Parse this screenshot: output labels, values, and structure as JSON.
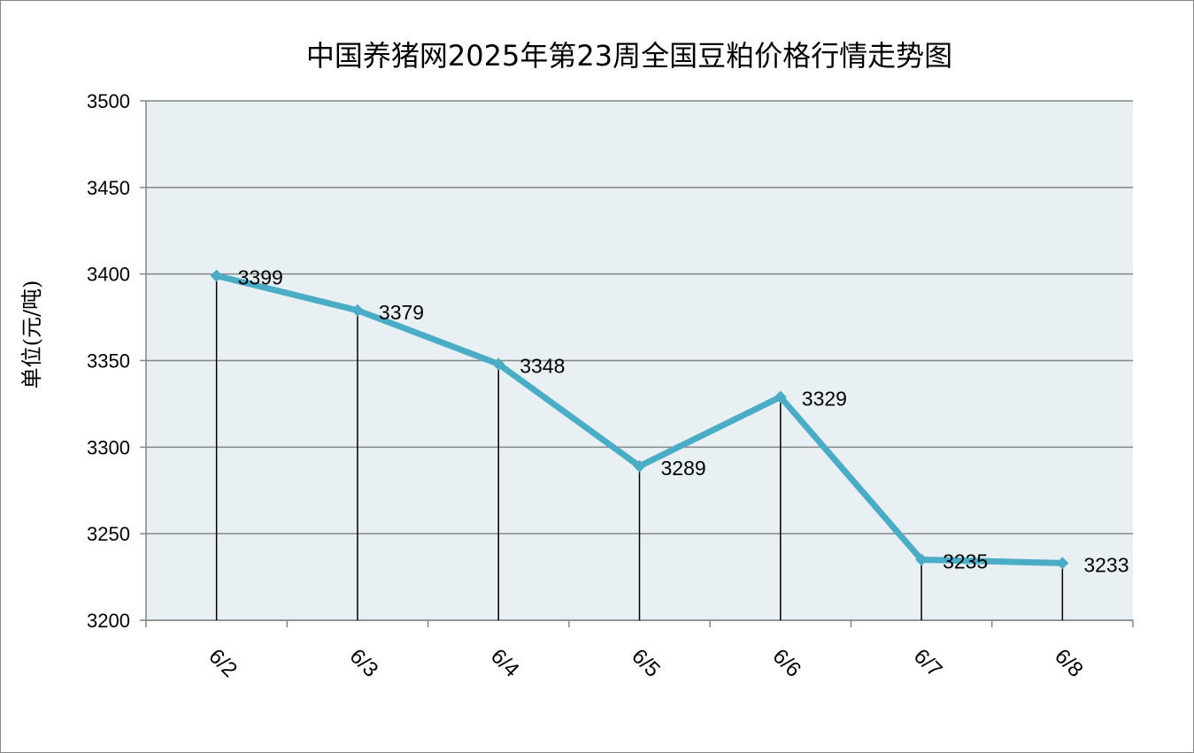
{
  "chart_data": {
    "type": "line",
    "title": "中国养猪网2025年第23周全国豆粕价格行情走势图",
    "xlabel": "",
    "ylabel": "单位(元/吨)",
    "categories": [
      "6/2",
      "6/3",
      "6/4",
      "6/5",
      "6/6",
      "6/7",
      "6/8"
    ],
    "series": [
      {
        "values": [
          3399,
          3379,
          3348,
          3289,
          3329,
          3235,
          3233
        ]
      }
    ],
    "ylim": [
      3200,
      3500
    ],
    "yticks": [
      3200,
      3250,
      3300,
      3350,
      3400,
      3450,
      3500
    ],
    "grid": true,
    "drop_lines": true,
    "data_labels": true,
    "legend": "none",
    "colors": {
      "line": "#4bacc6",
      "plot_background": "#e8f0f4",
      "gridline": "#868686",
      "drop_line": "#000000"
    }
  }
}
